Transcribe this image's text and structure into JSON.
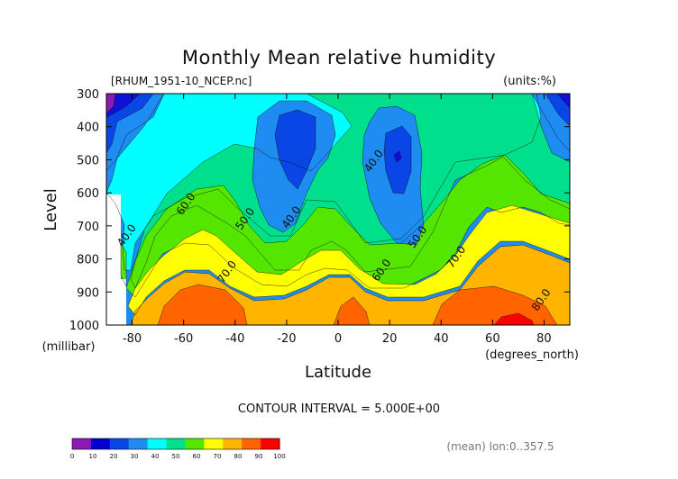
{
  "chart_data": {
    "type": "contour",
    "title": "Monthly Mean relative humidity",
    "file_label": "[RHUM_1951-10_NCEP.nc]",
    "units_label": "(units:%)",
    "xlabel": "Latitude",
    "x_units": "(degrees_north)",
    "ylabel": "Level",
    "y_units": "(millibar)",
    "xlim": [
      -90,
      90
    ],
    "ylim": [
      1000,
      300
    ],
    "x_ticks": [
      -80,
      -60,
      -40,
      -20,
      0,
      20,
      40,
      60,
      80
    ],
    "y_ticks": [
      300,
      400,
      500,
      600,
      700,
      800,
      900,
      1000
    ],
    "contour_interval_text": "CONTOUR INTERVAL = 5.000E+00",
    "footnote": "(mean) lon:0..357.5",
    "contour_labels": [
      {
        "text": "40.0",
        "lat": -81,
        "lev": 735
      },
      {
        "text": "60.0",
        "lat": -58,
        "lev": 640
      },
      {
        "text": "50.0",
        "lat": -35,
        "lev": 685
      },
      {
        "text": "40.0",
        "lat": -17,
        "lev": 680
      },
      {
        "text": "40.0",
        "lat": 15,
        "lev": 510
      },
      {
        "text": "70.0",
        "lat": -42,
        "lev": 845
      },
      {
        "text": "60.0",
        "lat": 18,
        "lev": 840
      },
      {
        "text": "50.0",
        "lat": 32,
        "lev": 740
      },
      {
        "text": "70.0",
        "lat": 47,
        "lev": 800
      },
      {
        "text": "80.0",
        "lat": 80,
        "lev": 930
      }
    ],
    "colorbar": {
      "levels": [
        "0",
        "10",
        "20",
        "30",
        "40",
        "50",
        "60",
        "70",
        "80",
        "90",
        "100"
      ],
      "colors": [
        "#8a1ab4",
        "#0000cd",
        "#0a46e6",
        "#1e8cf0",
        "#00ffff",
        "#00e08c",
        "#55e600",
        "#ffff00",
        "#ffb400",
        "#ff6400",
        "#ff0000"
      ]
    },
    "fill_colors": {
      "c10": "#8a1ab4",
      "c20": "#1010d8",
      "c30": "#0a46e6",
      "c40": "#1e8cf0",
      "c50": "#00ffff",
      "c60": "#00e08c",
      "c65": "#55e600",
      "c70": "#ffff00",
      "c80": "#ffb400",
      "c90": "#ff6400",
      "c100": "#ff0000"
    }
  }
}
